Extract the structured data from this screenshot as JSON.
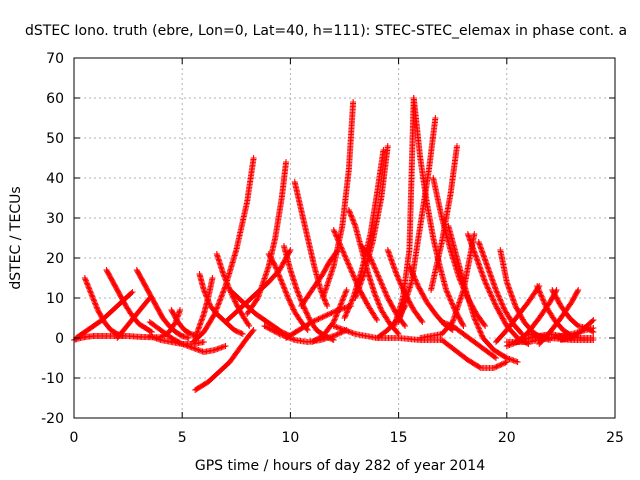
{
  "chart_data": {
    "type": "scatter",
    "title": "dSTEC Iono. truth (ebre, Lon=0, Lat=40, h=111): STEC-STEC_elemax in phase cont. a",
    "xlabel": "GPS time / hours of day 282 of year 2014",
    "ylabel": "dSTEC  / TECUs",
    "xlim": [
      0,
      25
    ],
    "ylim": [
      -20,
      70
    ],
    "xticks": [
      0,
      5,
      10,
      15,
      20,
      25
    ],
    "yticks": [
      -20,
      -10,
      0,
      10,
      20,
      30,
      40,
      50,
      60,
      70
    ],
    "grid": true,
    "marker": "+",
    "color": "#ff0000",
    "series": [
      {
        "x": [
          0.0,
          0.3,
          0.6,
          0.9,
          1.2,
          1.5,
          2.0,
          2.5,
          3.0,
          3.5,
          4.0,
          4.4,
          4.7,
          4.9
        ],
        "values": [
          -0.5,
          0.0,
          0.3,
          0.5,
          0.5,
          0.5,
          0.5,
          0.5,
          0.3,
          0.2,
          0.2,
          1.5,
          4.0,
          7.0
        ]
      },
      {
        "x": [
          0.5,
          0.8,
          1.1,
          1.4,
          1.7,
          2.0,
          2.3
        ],
        "values": [
          15.0,
          11.0,
          7.0,
          4.0,
          2.0,
          1.0,
          0.5
        ]
      },
      {
        "x": [
          0.1,
          0.5,
          0.9,
          1.3,
          1.7,
          2.1,
          2.4,
          2.7
        ],
        "values": [
          0.0,
          1.5,
          3.0,
          4.5,
          6.5,
          8.5,
          10.0,
          11.5
        ]
      },
      {
        "x": [
          1.5,
          1.8,
          2.1,
          2.4,
          2.7,
          3.0,
          3.3,
          3.6
        ],
        "values": [
          17.0,
          14.0,
          11.0,
          8.0,
          5.5,
          3.5,
          2.5,
          1.5
        ]
      },
      {
        "x": [
          2.0,
          2.3,
          2.6,
          2.9,
          3.2,
          3.5
        ],
        "values": [
          0.0,
          2.0,
          4.0,
          6.0,
          8.0,
          10.0
        ]
      },
      {
        "x": [
          2.9,
          3.2,
          3.5,
          3.8,
          4.1,
          4.4,
          4.7,
          5.0,
          5.3
        ],
        "values": [
          17.0,
          14.0,
          11.0,
          8.0,
          5.0,
          3.0,
          1.5,
          0.5,
          0.0
        ]
      },
      {
        "x": [
          3.5,
          4.0,
          4.5,
          5.0,
          5.5,
          6.0
        ],
        "values": [
          0.5,
          -0.5,
          -1.0,
          -1.5,
          -1.5,
          -1.0
        ]
      },
      {
        "x": [
          4.5,
          4.8,
          5.1,
          5.4,
          5.7
        ],
        "values": [
          7.0,
          4.0,
          2.0,
          1.0,
          0.5
        ]
      },
      {
        "x": [
          3.5,
          4.0,
          4.5,
          5.0,
          5.5,
          6.0,
          6.5,
          7.0
        ],
        "values": [
          4.0,
          2.0,
          0.0,
          -1.5,
          -2.5,
          -3.5,
          -3.0,
          -2.0
        ]
      },
      {
        "x": [
          5.6,
          6.2,
          6.8,
          7.2,
          7.6,
          8.0,
          8.3
        ],
        "values": [
          -13.0,
          -11.0,
          -8.0,
          -6.0,
          -3.0,
          0.0,
          2.0
        ]
      },
      {
        "x": [
          5.8,
          6.0,
          6.3,
          6.6,
          7.0,
          7.4,
          7.8
        ],
        "values": [
          16.0,
          12.0,
          8.0,
          6.0,
          4.0,
          2.0,
          1.0
        ]
      },
      {
        "x": [
          5.6,
          5.8,
          6.0,
          6.2,
          6.4
        ],
        "values": [
          0.0,
          3.0,
          6.0,
          10.0,
          15.0
        ]
      },
      {
        "x": [
          6.6,
          6.9,
          7.2,
          7.5,
          7.8,
          8.1
        ],
        "values": [
          21.0,
          16.0,
          12.0,
          8.5,
          5.5,
          3.0
        ]
      },
      {
        "x": [
          5.5,
          6.0,
          6.5,
          7.0,
          7.5,
          8.0,
          8.3
        ],
        "values": [
          -1.0,
          1.5,
          6.0,
          13.0,
          22.0,
          34.0,
          45.0
        ]
      },
      {
        "x": [
          7.2,
          7.6,
          8.0,
          8.4,
          8.8,
          9.2,
          9.6,
          10.0
        ],
        "values": [
          12.0,
          10.0,
          8.0,
          6.0,
          4.5,
          3.0,
          1.5,
          0.5
        ]
      },
      {
        "x": [
          7.0,
          7.5,
          8.0,
          8.5,
          9.0,
          9.5,
          10.0
        ],
        "values": [
          4.0,
          6.5,
          9.0,
          11.5,
          14.0,
          17.0,
          22.0
        ]
      },
      {
        "x": [
          8.0,
          8.5,
          9.0,
          9.3,
          9.6,
          9.8
        ],
        "values": [
          6.0,
          10.0,
          18.0,
          25.0,
          35.0,
          44.0
        ]
      },
      {
        "x": [
          9.0,
          9.3,
          9.6,
          9.9,
          10.2,
          10.5,
          10.8
        ],
        "values": [
          21.0,
          18.0,
          14.0,
          10.0,
          6.5,
          4.0,
          2.0
        ]
      },
      {
        "x": [
          9.7,
          10.0,
          10.3,
          10.6,
          10.9,
          11.2,
          11.6,
          12.0
        ],
        "values": [
          23.0,
          17.0,
          12.0,
          8.0,
          4.5,
          2.0,
          0.5,
          -0.5
        ]
      },
      {
        "x": [
          10.2,
          10.5,
          10.8,
          11.1,
          11.4,
          11.7
        ],
        "values": [
          39.0,
          32.0,
          25.0,
          18.0,
          12.0,
          8.0
        ]
      },
      {
        "x": [
          8.8,
          9.5,
          10.2,
          10.8,
          11.4,
          12.0,
          12.6
        ],
        "values": [
          3.0,
          1.0,
          -0.5,
          -1.0,
          -0.5,
          0.5,
          2.0
        ]
      },
      {
        "x": [
          9.8,
          10.4,
          11.0,
          11.6,
          12.2,
          12.8
        ],
        "values": [
          0.0,
          2.0,
          4.0,
          5.5,
          7.0,
          8.0
        ]
      },
      {
        "x": [
          10.5,
          11.0,
          11.5,
          11.8,
          12.2
        ],
        "values": [
          8.0,
          12.0,
          16.0,
          19.0,
          22.0
        ]
      },
      {
        "x": [
          11.0,
          11.5,
          12.0,
          12.3,
          12.6
        ],
        "values": [
          -1.0,
          0.5,
          4.0,
          8.0,
          12.0
        ]
      },
      {
        "x": [
          11.5,
          12.0,
          12.4,
          12.7,
          12.9
        ],
        "values": [
          10.0,
          18.0,
          28.0,
          42.0,
          59.0
        ]
      },
      {
        "x": [
          12.0,
          12.4,
          12.8,
          13.2,
          13.6,
          14.0
        ],
        "values": [
          27.0,
          22.0,
          17.0,
          12.0,
          8.0,
          4.5
        ]
      },
      {
        "x": [
          12.7,
          13.0,
          13.3,
          13.6,
          13.9,
          14.2,
          14.6,
          15.0
        ],
        "values": [
          32.0,
          28.0,
          22.0,
          16.0,
          11.0,
          7.0,
          3.5,
          1.0
        ]
      },
      {
        "x": [
          12.5,
          12.9,
          13.3,
          13.7,
          14.0,
          14.3
        ],
        "values": [
          5.0,
          10.0,
          17.0,
          26.0,
          36.0,
          47.0
        ]
      },
      {
        "x": [
          13.0,
          13.4,
          13.8,
          14.2,
          14.5
        ],
        "values": [
          10.0,
          16.0,
          24.0,
          35.0,
          48.0
        ]
      },
      {
        "x": [
          13.3,
          13.7,
          14.1,
          14.5,
          14.9,
          15.3
        ],
        "values": [
          23.0,
          20.0,
          15.0,
          10.0,
          6.0,
          3.0
        ]
      },
      {
        "x": [
          14.5,
          14.9,
          15.3,
          15.7,
          16.1
        ],
        "values": [
          22.0,
          16.0,
          11.0,
          7.0,
          4.0
        ]
      },
      {
        "x": [
          12.0,
          13.0,
          14.0,
          15.0,
          16.0,
          17.0
        ],
        "values": [
          3.0,
          1.0,
          0.0,
          0.0,
          -0.5,
          -0.5
        ]
      },
      {
        "x": [
          14.0,
          14.5,
          15.0,
          15.3
        ],
        "values": [
          0.0,
          2.0,
          5.0,
          8.0
        ]
      },
      {
        "x": [
          14.8,
          15.2,
          15.5,
          15.7
        ],
        "values": [
          3.0,
          10.0,
          22.0,
          60.0
        ]
      },
      {
        "x": [
          15.5,
          15.9,
          16.3,
          16.7,
          17.1,
          17.5
        ],
        "values": [
          18.0,
          13.0,
          9.0,
          6.0,
          3.5,
          2.0
        ]
      },
      {
        "x": [
          15.7,
          16.0,
          16.3,
          16.6,
          16.9,
          17.2,
          17.6,
          18.0
        ],
        "values": [
          60.0,
          45.0,
          34.0,
          25.0,
          18.0,
          12.0,
          7.0,
          3.0
        ]
      },
      {
        "x": [
          15.0,
          15.6,
          16.0,
          16.4,
          16.7
        ],
        "values": [
          4.0,
          14.0,
          28.0,
          42.0,
          55.0
        ]
      },
      {
        "x": [
          16.6,
          17.0,
          17.4,
          17.8,
          18.2,
          18.6,
          19.0
        ],
        "values": [
          40.0,
          30.0,
          22.0,
          15.0,
          10.0,
          6.0,
          3.0
        ]
      },
      {
        "x": [
          16.5,
          17.0,
          17.4,
          17.7
        ],
        "values": [
          12.0,
          24.0,
          36.0,
          48.0
        ]
      },
      {
        "x": [
          17.3,
          17.7,
          18.1,
          18.5,
          18.9,
          19.4,
          20.0,
          20.5
        ],
        "values": [
          28.0,
          20.0,
          12.0,
          5.0,
          0.0,
          -3.0,
          -5.0,
          -6.0
        ]
      },
      {
        "x": [
          16.0,
          17.0,
          17.5,
          18.0,
          18.5
        ],
        "values": [
          0.0,
          1.0,
          4.0,
          12.0,
          26.0
        ]
      },
      {
        "x": [
          18.2,
          18.6,
          19.0,
          19.5,
          20.0,
          20.5,
          21.0
        ],
        "values": [
          26.0,
          20.0,
          14.0,
          8.0,
          3.0,
          0.0,
          -1.5
        ]
      },
      {
        "x": [
          17.0,
          17.6,
          18.2,
          18.8,
          19.4,
          20.0
        ],
        "values": [
          -0.5,
          -3.0,
          -5.5,
          -7.5,
          -7.5,
          -6.0
        ]
      },
      {
        "x": [
          18.7,
          19.1,
          19.5,
          19.9,
          20.3,
          20.7
        ],
        "values": [
          24.0,
          18.0,
          12.0,
          7.0,
          3.5,
          1.0
        ]
      },
      {
        "x": [
          17.0,
          17.5,
          18.0,
          18.5,
          19.0,
          19.5
        ],
        "values": [
          4.0,
          3.0,
          1.0,
          -1.0,
          -3.0,
          -5.0
        ]
      },
      {
        "x": [
          19.7,
          20.0,
          20.4,
          20.8,
          21.2,
          21.6,
          22.0
        ],
        "values": [
          22.0,
          14.0,
          8.0,
          4.0,
          1.5,
          0.0,
          -0.5
        ]
      },
      {
        "x": [
          20.0,
          20.5,
          21.0,
          21.5,
          22.0,
          22.5,
          23.0,
          24.0
        ],
        "values": [
          -2.0,
          -1.0,
          0.0,
          0.5,
          1.0,
          0.5,
          0.0,
          0.0
        ]
      },
      {
        "x": [
          19.5,
          20.0,
          20.5,
          21.0,
          21.5
        ],
        "values": [
          -1.0,
          2.0,
          5.5,
          9.0,
          13.0
        ]
      },
      {
        "x": [
          21.4,
          21.8,
          22.2,
          22.6,
          23.0,
          23.4
        ],
        "values": [
          13.0,
          8.0,
          4.5,
          2.0,
          0.5,
          0.0
        ]
      },
      {
        "x": [
          20.5,
          21.0,
          21.5,
          22.0,
          22.3
        ],
        "values": [
          -1.0,
          1.5,
          5.0,
          9.0,
          12.0
        ]
      },
      {
        "x": [
          22.1,
          22.5,
          22.9,
          23.3,
          23.7,
          24.0
        ],
        "values": [
          12.0,
          8.0,
          5.0,
          3.0,
          2.5,
          1.5
        ]
      },
      {
        "x": [
          21.5,
          22.0,
          22.5,
          23.0,
          23.3
        ],
        "values": [
          -1.5,
          1.5,
          5.0,
          9.0,
          12.0
        ]
      },
      {
        "x": [
          22.5,
          23.0,
          23.5,
          24.0
        ],
        "values": [
          -0.5,
          0.0,
          2.0,
          4.5
        ]
      },
      {
        "x": [
          20.0,
          21.0,
          22.0,
          23.0,
          24.0
        ],
        "values": [
          -1.0,
          -1.0,
          0.0,
          1.0,
          2.5
        ]
      },
      {
        "x": [
          21.0,
          22.0,
          23.0,
          24.0
        ],
        "values": [
          1.0,
          0.0,
          -0.5,
          -0.5
        ]
      }
    ]
  }
}
